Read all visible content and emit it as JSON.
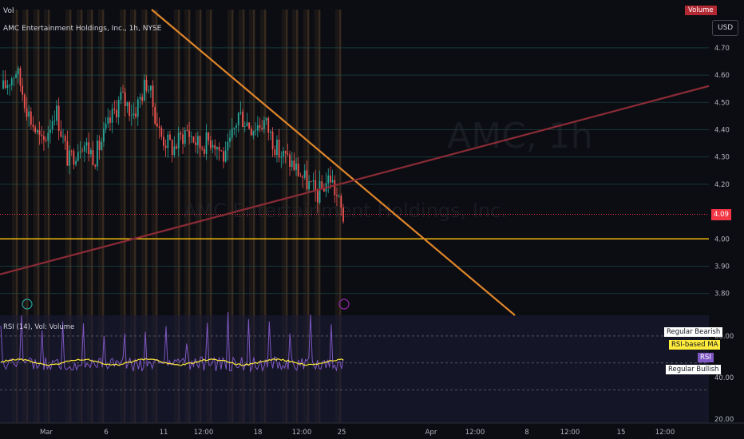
{
  "chart_data": [
    {
      "type": "candlestick",
      "title": "AMC Entertainment Holdings, Inc., 1h, NYSE",
      "watermark_symbol": "AMC, 1h",
      "watermark_name": "AMC Entertainment Holdings, Inc.",
      "vol_label": "Vol",
      "volume_badge": "Volume",
      "currency": "USD",
      "last_price": "4.09",
      "ylim": [
        3.72,
        4.84
      ],
      "y_ticks": [
        "4.70",
        "4.60",
        "4.50",
        "4.40",
        "4.30",
        "4.20",
        "4.00",
        "3.90",
        "3.80"
      ],
      "x_ticks": [
        "Mar",
        "6",
        "11",
        "12:00",
        "18",
        "12:00",
        "25",
        "Apr",
        "12:00",
        "8",
        "12:00",
        "15",
        "12:00"
      ],
      "close_path": [
        4.55,
        4.62,
        4.45,
        4.34,
        4.48,
        4.28,
        4.36,
        4.3,
        4.41,
        4.52,
        4.46,
        4.58,
        4.38,
        4.33,
        4.4,
        4.34,
        4.37,
        4.29,
        4.46,
        4.41,
        4.43,
        4.32,
        4.28,
        4.22,
        4.16,
        4.23,
        4.08
      ],
      "horizontal_levels": [
        4.0
      ],
      "level_color": "#f0b90b",
      "downtrend_color": "#e0862a",
      "uptrend_color": "#8b2b36"
    },
    {
      "type": "line",
      "title": "RSI (14)",
      "header_label": "RSI (14)",
      "header_extra": "Vol: Volume",
      "ylim": [
        18,
        70
      ],
      "y_ticks": [
        "60.00",
        "40.00",
        "20.00"
      ],
      "series": [
        {
          "name": "RSI",
          "color": "#7e57c2"
        },
        {
          "name": "RSI-based MA",
          "color": "#ffeb3b"
        }
      ],
      "legend_items": [
        "Regular Bearish",
        "RSI-based MA",
        "RSI",
        "Regular Bullish"
      ]
    }
  ]
}
